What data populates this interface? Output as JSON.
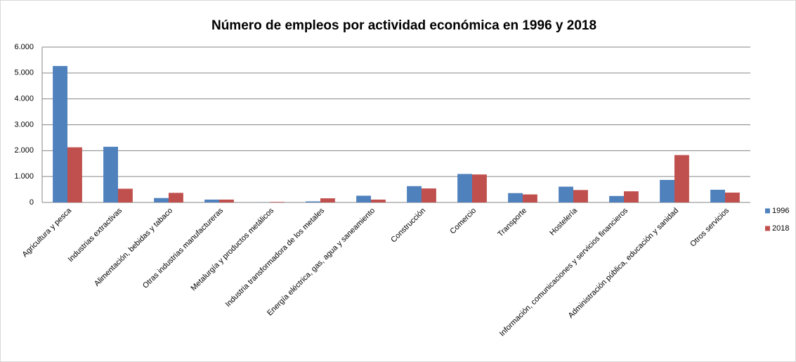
{
  "chart_data": {
    "type": "bar",
    "title": "Número de empleos por actividad económica en 1996 y 2018",
    "categories": [
      "Agricultura y pesca",
      "Industrias extractivas",
      "Alimentación, bebidas y tabaco",
      "Otras industrias manufactureras",
      "Metalurgía y productos metálicos",
      "Industria transformadora de los metales",
      "Energía eléctrica, gas, agua y saneamiento",
      "Construcción",
      "Comercio",
      "Transporte",
      "Hostelería",
      "Información, comunicaciones y servicios financieros",
      "Administración pública, educación y sanidad",
      "Otros servicios"
    ],
    "series": [
      {
        "name": "1996",
        "color": "#4f81bd",
        "values": [
          5270,
          2150,
          170,
          110,
          5,
          40,
          260,
          630,
          1100,
          360,
          610,
          250,
          870,
          490
        ]
      },
      {
        "name": "2018",
        "color": "#c0504d",
        "values": [
          2130,
          530,
          370,
          110,
          20,
          160,
          110,
          540,
          1080,
          310,
          480,
          430,
          1830,
          380
        ]
      }
    ],
    "ylim": [
      0,
      6000
    ],
    "yticks": [
      0,
      {
        "value": 1000,
        "label": "1.000"
      },
      {
        "value": 2000,
        "label": "2.000"
      },
      {
        "value": 3000,
        "label": "3.000"
      },
      {
        "value": 4000,
        "label": "4.000"
      },
      {
        "value": 5000,
        "label": "5.000"
      },
      {
        "value": 6000,
        "label": "6.000"
      }
    ],
    "grid": true,
    "legend": "right"
  }
}
